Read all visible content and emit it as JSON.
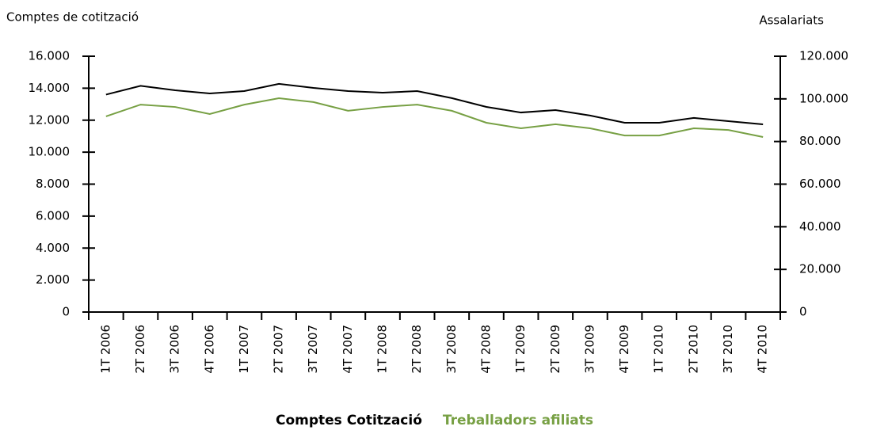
{
  "chart_data": {
    "type": "line",
    "y_label": "Comptes de cotització",
    "y2_label": "Assalariats",
    "categories": [
      "1T 2006",
      "2T 2006",
      "3T 2006",
      "4T 2006",
      "1T 2007",
      "2T 2007",
      "3T 2007",
      "4T 2007",
      "1T 2008",
      "2T 2008",
      "3T 2008",
      "4T 2008",
      "1T 2009",
      "2T 2009",
      "3T 2009",
      "4T 2009",
      "1T 2010",
      "2T 2010",
      "3T 2010",
      "4T 2010"
    ],
    "series": [
      {
        "name": "Comptes Cotització",
        "color": "#000000",
        "axis": "y",
        "values": [
          13600,
          14150,
          13870,
          13670,
          13820,
          14270,
          14020,
          13820,
          13720,
          13820,
          13380,
          12830,
          12480,
          12630,
          12290,
          11840,
          11840,
          12140,
          11940,
          11740
        ]
      },
      {
        "name": "Treballadors afiliats",
        "color": "#77a044",
        "axis": "y2",
        "values": [
          91800,
          97300,
          96200,
          92900,
          97300,
          100300,
          98500,
          94400,
          96200,
          97300,
          94400,
          88800,
          86200,
          88100,
          86200,
          82800,
          82800,
          86200,
          85400,
          82100
        ]
      }
    ],
    "ylim": [
      0,
      16000
    ],
    "yticks": [
      0,
      {
        "value": 2000,
        "label": "2.000"
      },
      {
        "value": 4000,
        "label": "4.000"
      },
      {
        "value": 6000,
        "label": "6.000"
      },
      {
        "value": 8000,
        "label": "8.000"
      },
      {
        "value": 10000,
        "label": "10.000"
      },
      {
        "value": 12000,
        "label": "12.000"
      },
      {
        "value": 14000,
        "label": "14.000"
      },
      {
        "value": 16000,
        "label": "16.000"
      }
    ],
    "y2lim": [
      0,
      120000
    ],
    "y2ticks": [
      0,
      {
        "value": 20000,
        "label": "20.000"
      },
      {
        "value": 40000,
        "label": "40.000"
      },
      {
        "value": 60000,
        "label": "60.000"
      },
      {
        "value": 80000,
        "label": "80.000"
      },
      {
        "value": 100000,
        "label": "100.000"
      },
      {
        "value": 120000,
        "label": "120.000"
      }
    ],
    "grid": false,
    "legend": "bottom"
  }
}
